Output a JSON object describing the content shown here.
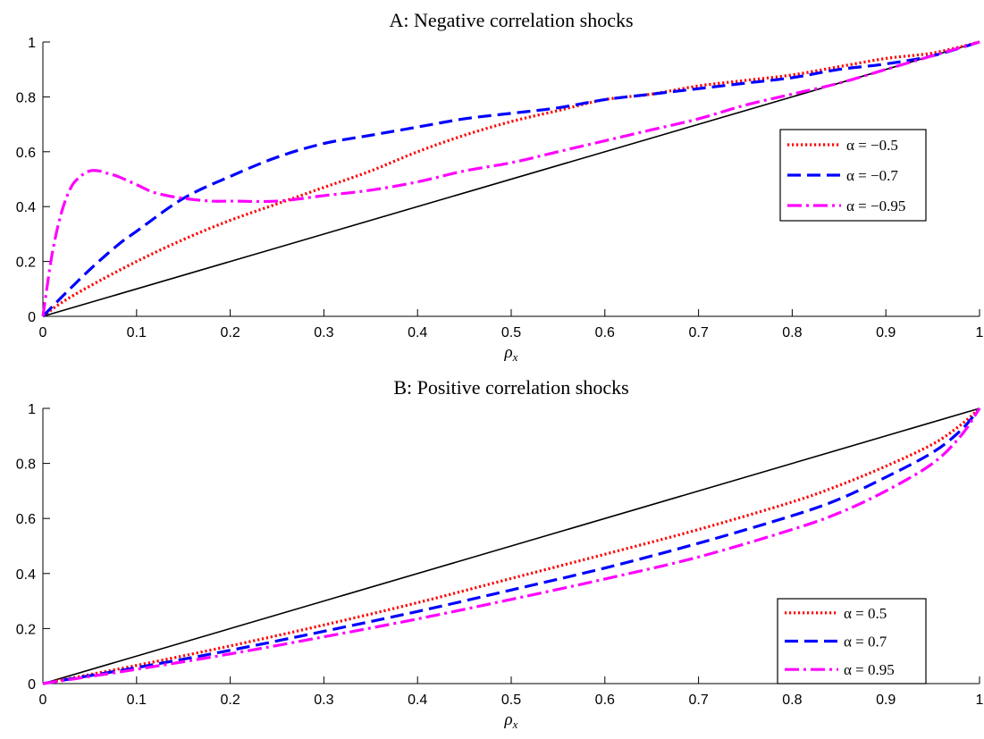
{
  "chart_data": [
    {
      "type": "line",
      "title": "A: Negative correlation shocks",
      "xlabel": "ρ_x",
      "ylabel": "",
      "xlim": [
        0,
        1
      ],
      "ylim": [
        0,
        1
      ],
      "xticks": [
        "0",
        "0.1",
        "0.2",
        "0.3",
        "0.4",
        "0.5",
        "0.6",
        "0.7",
        "0.8",
        "0.9",
        "1"
      ],
      "yticks": [
        "0",
        "0.2",
        "0.4",
        "0.6",
        "0.8",
        "1"
      ],
      "grid": false,
      "legend_position": "right",
      "reference_line": {
        "x": [
          0,
          1
        ],
        "y": [
          0,
          1
        ],
        "color": "#000000"
      },
      "series": [
        {
          "name": "α = −0.5",
          "color": "#ff0000",
          "style": "dotted",
          "x": [
            0,
            0.02,
            0.05,
            0.1,
            0.15,
            0.2,
            0.25,
            0.3,
            0.35,
            0.4,
            0.45,
            0.5,
            0.55,
            0.6,
            0.65,
            0.7,
            0.75,
            0.8,
            0.85,
            0.9,
            0.95,
            1
          ],
          "y": [
            0,
            0.05,
            0.11,
            0.2,
            0.28,
            0.35,
            0.41,
            0.47,
            0.53,
            0.6,
            0.66,
            0.71,
            0.75,
            0.79,
            0.81,
            0.84,
            0.86,
            0.88,
            0.91,
            0.94,
            0.96,
            1
          ]
        },
        {
          "name": "α = −0.7",
          "color": "#0000ff",
          "style": "dashed",
          "x": [
            0,
            0.02,
            0.05,
            0.08,
            0.1,
            0.15,
            0.2,
            0.25,
            0.3,
            0.35,
            0.4,
            0.45,
            0.5,
            0.55,
            0.6,
            0.65,
            0.7,
            0.75,
            0.8,
            0.85,
            0.9,
            0.95,
            1
          ],
          "y": [
            0,
            0.07,
            0.17,
            0.26,
            0.31,
            0.43,
            0.51,
            0.58,
            0.63,
            0.66,
            0.69,
            0.72,
            0.74,
            0.76,
            0.79,
            0.81,
            0.83,
            0.85,
            0.87,
            0.9,
            0.92,
            0.95,
            1
          ]
        },
        {
          "name": "α = −0.95",
          "color": "#ff00ff",
          "style": "dashdot",
          "x": [
            0,
            0.01,
            0.02,
            0.03,
            0.04,
            0.05,
            0.06,
            0.07,
            0.08,
            0.1,
            0.12,
            0.15,
            0.18,
            0.2,
            0.25,
            0.3,
            0.35,
            0.4,
            0.45,
            0.5,
            0.55,
            0.6,
            0.65,
            0.7,
            0.75,
            0.8,
            0.85,
            0.9,
            0.95,
            1
          ],
          "y": [
            0,
            0.23,
            0.38,
            0.47,
            0.51,
            0.53,
            0.53,
            0.52,
            0.51,
            0.48,
            0.45,
            0.43,
            0.42,
            0.42,
            0.42,
            0.44,
            0.46,
            0.49,
            0.53,
            0.56,
            0.6,
            0.64,
            0.68,
            0.72,
            0.77,
            0.81,
            0.85,
            0.9,
            0.95,
            1
          ]
        }
      ]
    },
    {
      "type": "line",
      "title": "B: Positive correlation shocks",
      "xlabel": "ρ_x",
      "ylabel": "",
      "xlim": [
        0,
        1
      ],
      "ylim": [
        0,
        1
      ],
      "xticks": [
        "0",
        "0.1",
        "0.2",
        "0.3",
        "0.4",
        "0.5",
        "0.6",
        "0.7",
        "0.8",
        "0.9",
        "1"
      ],
      "yticks": [
        "0",
        "0.2",
        "0.4",
        "0.6",
        "0.8",
        "1"
      ],
      "grid": false,
      "legend_position": "bottom-right",
      "reference_line": {
        "x": [
          0,
          1
        ],
        "y": [
          0,
          1
        ],
        "color": "#000000"
      },
      "series": [
        {
          "name": "α = 0.5",
          "color": "#ff0000",
          "style": "dotted",
          "x": [
            0,
            0.1,
            0.2,
            0.3,
            0.4,
            0.5,
            0.6,
            0.7,
            0.8,
            0.85,
            0.9,
            0.95,
            0.98,
            1
          ],
          "y": [
            0,
            0.066,
            0.137,
            0.213,
            0.294,
            0.382,
            0.47,
            0.56,
            0.66,
            0.72,
            0.79,
            0.87,
            0.94,
            1
          ]
        },
        {
          "name": "α = 0.7",
          "color": "#0000ff",
          "style": "dashed",
          "x": [
            0,
            0.1,
            0.2,
            0.3,
            0.4,
            0.5,
            0.6,
            0.7,
            0.8,
            0.85,
            0.9,
            0.95,
            0.98,
            1
          ],
          "y": [
            0,
            0.058,
            0.121,
            0.19,
            0.262,
            0.34,
            0.42,
            0.51,
            0.61,
            0.67,
            0.75,
            0.84,
            0.92,
            1
          ]
        },
        {
          "name": "α = 0.95",
          "color": "#ff00ff",
          "style": "dashdot",
          "x": [
            0,
            0.1,
            0.2,
            0.3,
            0.4,
            0.5,
            0.6,
            0.7,
            0.8,
            0.85,
            0.9,
            0.95,
            0.98,
            1
          ],
          "y": [
            0,
            0.052,
            0.108,
            0.17,
            0.235,
            0.306,
            0.38,
            0.46,
            0.56,
            0.62,
            0.7,
            0.8,
            0.9,
            1
          ]
        }
      ]
    }
  ]
}
